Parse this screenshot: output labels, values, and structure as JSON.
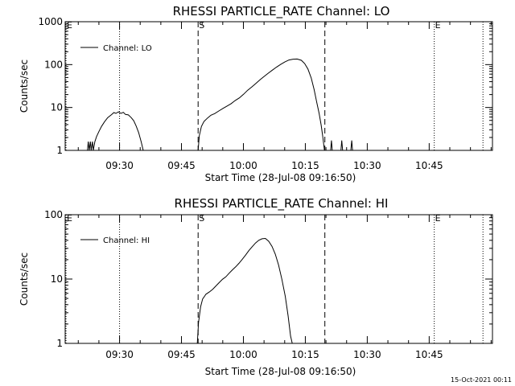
{
  "footer_timestamp": "15-Oct-2021 00:11",
  "chart_data": [
    {
      "type": "line",
      "title": "RHESSI PARTICLE_RATE Channel: LO",
      "xlabel": "Start Time (28-Jul-08 09:16:50)",
      "ylabel": "Counts/sec",
      "x_unit": "minutes after 09:16:50",
      "xlim": [
        0,
        103.5
      ],
      "ylim": [
        1,
        1000
      ],
      "yscale": "log",
      "y_ticks": [
        1,
        10,
        100,
        1000
      ],
      "y_tick_labels": [
        "1",
        "10",
        "100",
        "1000"
      ],
      "x_ticks": [
        13.17,
        28.17,
        43.17,
        58.17,
        73.17,
        88.17
      ],
      "x_tick_labels": [
        "09:30",
        "09:45",
        "10:00",
        "10:15",
        "10:30",
        "10:45"
      ],
      "legend": "top-left",
      "series": [
        {
          "name": "Channel: LO",
          "segments": [
            [
              [
                5.4,
                1
              ],
              [
                5.6,
                1.6
              ],
              [
                5.8,
                1
              ],
              [
                6.1,
                1.6
              ],
              [
                6.3,
                1
              ],
              [
                6.6,
                1.6
              ],
              [
                6.8,
                1
              ],
              [
                7.2,
                1.6
              ],
              [
                7.6,
                2.1
              ],
              [
                8.2,
                2.8
              ],
              [
                8.8,
                3.6
              ],
              [
                9.5,
                4.6
              ],
              [
                10.3,
                5.8
              ],
              [
                11.2,
                6.8
              ],
              [
                11.8,
                7.6
              ],
              [
                12.3,
                7.3
              ],
              [
                12.9,
                7.9
              ],
              [
                13.5,
                7.3
              ],
              [
                14.1,
                7.7
              ],
              [
                14.6,
                6.9
              ],
              [
                15.3,
                6.7
              ],
              [
                16.0,
                5.8
              ],
              [
                16.6,
                4.9
              ],
              [
                17.2,
                3.7
              ],
              [
                17.8,
                2.6
              ],
              [
                18.4,
                1.6
              ],
              [
                18.9,
                1
              ]
            ],
            [
              [
                32.2,
                1
              ],
              [
                32.5,
                2.2
              ],
              [
                33.0,
                3.6
              ],
              [
                33.6,
                4.7
              ],
              [
                34.5,
                5.7
              ],
              [
                35.3,
                6.6
              ],
              [
                36.2,
                7.2
              ],
              [
                37.2,
                8.3
              ],
              [
                38.3,
                9.6
              ],
              [
                39.2,
                10.8
              ],
              [
                40.2,
                12.3
              ],
              [
                41.2,
                14.6
              ],
              [
                42.2,
                16.8
              ],
              [
                43.2,
                20.3
              ],
              [
                44.2,
                25.3
              ],
              [
                45.2,
                30.1
              ],
              [
                46.2,
                36.5
              ],
              [
                47.2,
                44.5
              ],
              [
                48.2,
                53
              ],
              [
                49.2,
                63
              ],
              [
                50.2,
                74.5
              ],
              [
                51.2,
                87.5
              ],
              [
                52.2,
                101
              ],
              [
                53.2,
                115
              ],
              [
                54.2,
                128
              ],
              [
                55.2,
                134
              ],
              [
                56.2,
                135
              ],
              [
                57.2,
                126
              ],
              [
                58.0,
                106
              ],
              [
                58.8,
                78.5
              ],
              [
                59.6,
                48.5
              ],
              [
                60.3,
                26
              ],
              [
                60.9,
                13.8
              ],
              [
                61.5,
                7.4
              ],
              [
                62.0,
                3.9
              ],
              [
                62.4,
                2.1
              ],
              [
                62.8,
                1
              ]
            ],
            [
              [
                64.3,
                1
              ],
              [
                64.5,
                1.7
              ],
              [
                64.7,
                1
              ]
            ],
            [
              [
                66.8,
                1
              ],
              [
                67.0,
                1.7
              ],
              [
                67.2,
                1
              ]
            ],
            [
              [
                69.2,
                1
              ],
              [
                69.4,
                1.7
              ],
              [
                69.6,
                1
              ]
            ]
          ]
        }
      ],
      "annotations": [
        {
          "label": "E",
          "x": 0.2,
          "style": "dotted"
        },
        {
          "label": "",
          "x": 13.17,
          "style": "dotted"
        },
        {
          "label": "S",
          "x": 32.2,
          "style": "dashed"
        },
        {
          "label": "",
          "x": 62.9,
          "style": "dashed"
        },
        {
          "label": "E",
          "x": 89.4,
          "style": "dotted"
        },
        {
          "label": "",
          "x": 101.2,
          "style": "dotted"
        }
      ]
    },
    {
      "type": "line",
      "title": "RHESSI PARTICLE_RATE Channel: HI",
      "xlabel": "Start Time (28-Jul-08 09:16:50)",
      "ylabel": "Counts/sec",
      "x_unit": "minutes after 09:16:50",
      "xlim": [
        0,
        103.5
      ],
      "ylim": [
        1,
        100
      ],
      "yscale": "log",
      "y_ticks": [
        1,
        10,
        100
      ],
      "y_tick_labels": [
        "1",
        "10",
        "100"
      ],
      "x_ticks": [
        13.17,
        28.17,
        43.17,
        58.17,
        73.17,
        88.17
      ],
      "x_tick_labels": [
        "09:30",
        "09:45",
        "10:00",
        "10:15",
        "10:30",
        "10:45"
      ],
      "legend": "top-left",
      "series": [
        {
          "name": "Channel: HI",
          "segments": [
            [
              [
                32.0,
                1
              ],
              [
                32.3,
                2.1
              ],
              [
                32.8,
                3.7
              ],
              [
                33.3,
                4.9
              ],
              [
                34.1,
                5.8
              ],
              [
                34.9,
                6.3
              ],
              [
                35.7,
                6.9
              ],
              [
                36.5,
                7.8
              ],
              [
                37.3,
                8.8
              ],
              [
                38.1,
                9.9
              ],
              [
                38.9,
                10.8
              ],
              [
                39.7,
                12.3
              ],
              [
                40.5,
                13.9
              ],
              [
                41.3,
                15.5
              ],
              [
                42.1,
                17.6
              ],
              [
                42.9,
                20.3
              ],
              [
                43.7,
                23.6
              ],
              [
                44.5,
                27.7
              ],
              [
                45.3,
                31.8
              ],
              [
                46.1,
                36.3
              ],
              [
                46.9,
                40
              ],
              [
                47.7,
                42.3
              ],
              [
                48.5,
                42.8
              ],
              [
                49.3,
                38.7
              ],
              [
                50.1,
                32.3
              ],
              [
                50.9,
                24.4
              ],
              [
                51.7,
                16.5
              ],
              [
                52.5,
                9.9
              ],
              [
                53.3,
                5.4
              ],
              [
                54.0,
                2.7
              ],
              [
                54.6,
                1.3
              ],
              [
                55.0,
                1
              ]
            ]
          ]
        }
      ],
      "annotations": [
        {
          "label": "E",
          "x": 0.2,
          "style": "dotted"
        },
        {
          "label": "",
          "x": 13.17,
          "style": "dotted"
        },
        {
          "label": "S",
          "x": 32.2,
          "style": "dashed"
        },
        {
          "label": "",
          "x": 62.9,
          "style": "dashed"
        },
        {
          "label": "E",
          "x": 89.4,
          "style": "dotted"
        },
        {
          "label": "",
          "x": 101.2,
          "style": "dotted"
        }
      ]
    }
  ]
}
